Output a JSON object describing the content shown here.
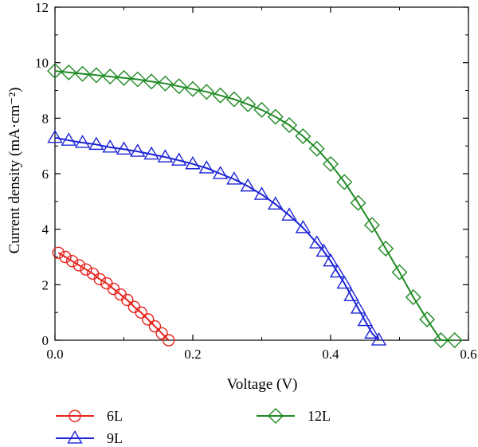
{
  "chart_data": {
    "type": "line",
    "xlabel": "Voltage (V)",
    "ylabel": "Current density (mA·cm⁻²)",
    "xlim": [
      0,
      0.6
    ],
    "ylim": [
      0,
      12
    ],
    "x_ticks": [
      "0.0",
      "0.2",
      "0.4",
      "0.6"
    ],
    "y_ticks": [
      "0",
      "2",
      "4",
      "6",
      "8",
      "10",
      "12"
    ],
    "grid": false,
    "legend_position": "bottom",
    "series": [
      {
        "name": "6L",
        "color": "#e8221c",
        "marker": "circle",
        "x": [
          0.005,
          0.015,
          0.025,
          0.035,
          0.045,
          0.055,
          0.065,
          0.075,
          0.085,
          0.095,
          0.105,
          0.115,
          0.125,
          0.135,
          0.145,
          0.155,
          0.165
        ],
        "y": [
          3.15,
          3.0,
          2.85,
          2.7,
          2.55,
          2.4,
          2.2,
          2.05,
          1.85,
          1.65,
          1.45,
          1.2,
          1.0,
          0.75,
          0.5,
          0.25,
          0.0
        ]
      },
      {
        "name": "9L",
        "color": "#1c24d6",
        "marker": "triangle",
        "x": [
          0.0,
          0.02,
          0.04,
          0.06,
          0.08,
          0.1,
          0.12,
          0.14,
          0.16,
          0.18,
          0.2,
          0.22,
          0.24,
          0.26,
          0.28,
          0.3,
          0.32,
          0.34,
          0.36,
          0.38,
          0.39,
          0.4,
          0.41,
          0.42,
          0.43,
          0.44,
          0.45,
          0.46,
          0.47
        ],
        "y": [
          7.3,
          7.2,
          7.12,
          7.05,
          6.95,
          6.88,
          6.8,
          6.7,
          6.6,
          6.48,
          6.35,
          6.2,
          6.0,
          5.8,
          5.55,
          5.25,
          4.9,
          4.5,
          4.05,
          3.5,
          3.2,
          2.85,
          2.45,
          2.05,
          1.6,
          1.15,
          0.7,
          0.25,
          0.0
        ]
      },
      {
        "name": "12L",
        "color": "#1f8a24",
        "marker": "diamond",
        "x": [
          0.0,
          0.02,
          0.04,
          0.06,
          0.08,
          0.1,
          0.12,
          0.14,
          0.16,
          0.18,
          0.2,
          0.22,
          0.24,
          0.26,
          0.28,
          0.3,
          0.32,
          0.34,
          0.36,
          0.38,
          0.4,
          0.42,
          0.44,
          0.46,
          0.48,
          0.5,
          0.52,
          0.54,
          0.56,
          0.58
        ],
        "y": [
          9.7,
          9.65,
          9.6,
          9.55,
          9.5,
          9.45,
          9.4,
          9.32,
          9.25,
          9.15,
          9.05,
          8.95,
          8.82,
          8.68,
          8.5,
          8.3,
          8.05,
          7.75,
          7.35,
          6.9,
          6.35,
          5.7,
          4.95,
          4.15,
          3.3,
          2.45,
          1.55,
          0.75,
          0.0,
          0.0
        ]
      }
    ]
  }
}
